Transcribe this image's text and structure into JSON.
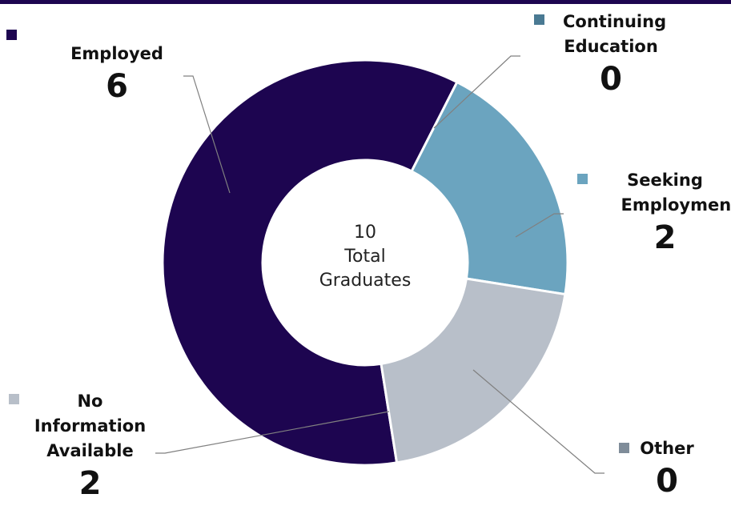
{
  "center_label": {
    "total": "10",
    "line2": "Total",
    "line3": "Graduates"
  },
  "chart_data": {
    "type": "pie",
    "variant": "donut",
    "categories": [
      "Employed",
      "Continuing Education",
      "Seeking Employment",
      "Other",
      "No Information Available"
    ],
    "values": [
      6,
      0,
      2,
      0,
      2
    ],
    "value_labels": [
      "6",
      "0",
      "2",
      "0",
      "2"
    ],
    "colors": [
      "#1d0550",
      "#4a7a93",
      "#6ba4bf",
      "#7f8c99",
      "#b8bfc9"
    ],
    "total": 10
  }
}
